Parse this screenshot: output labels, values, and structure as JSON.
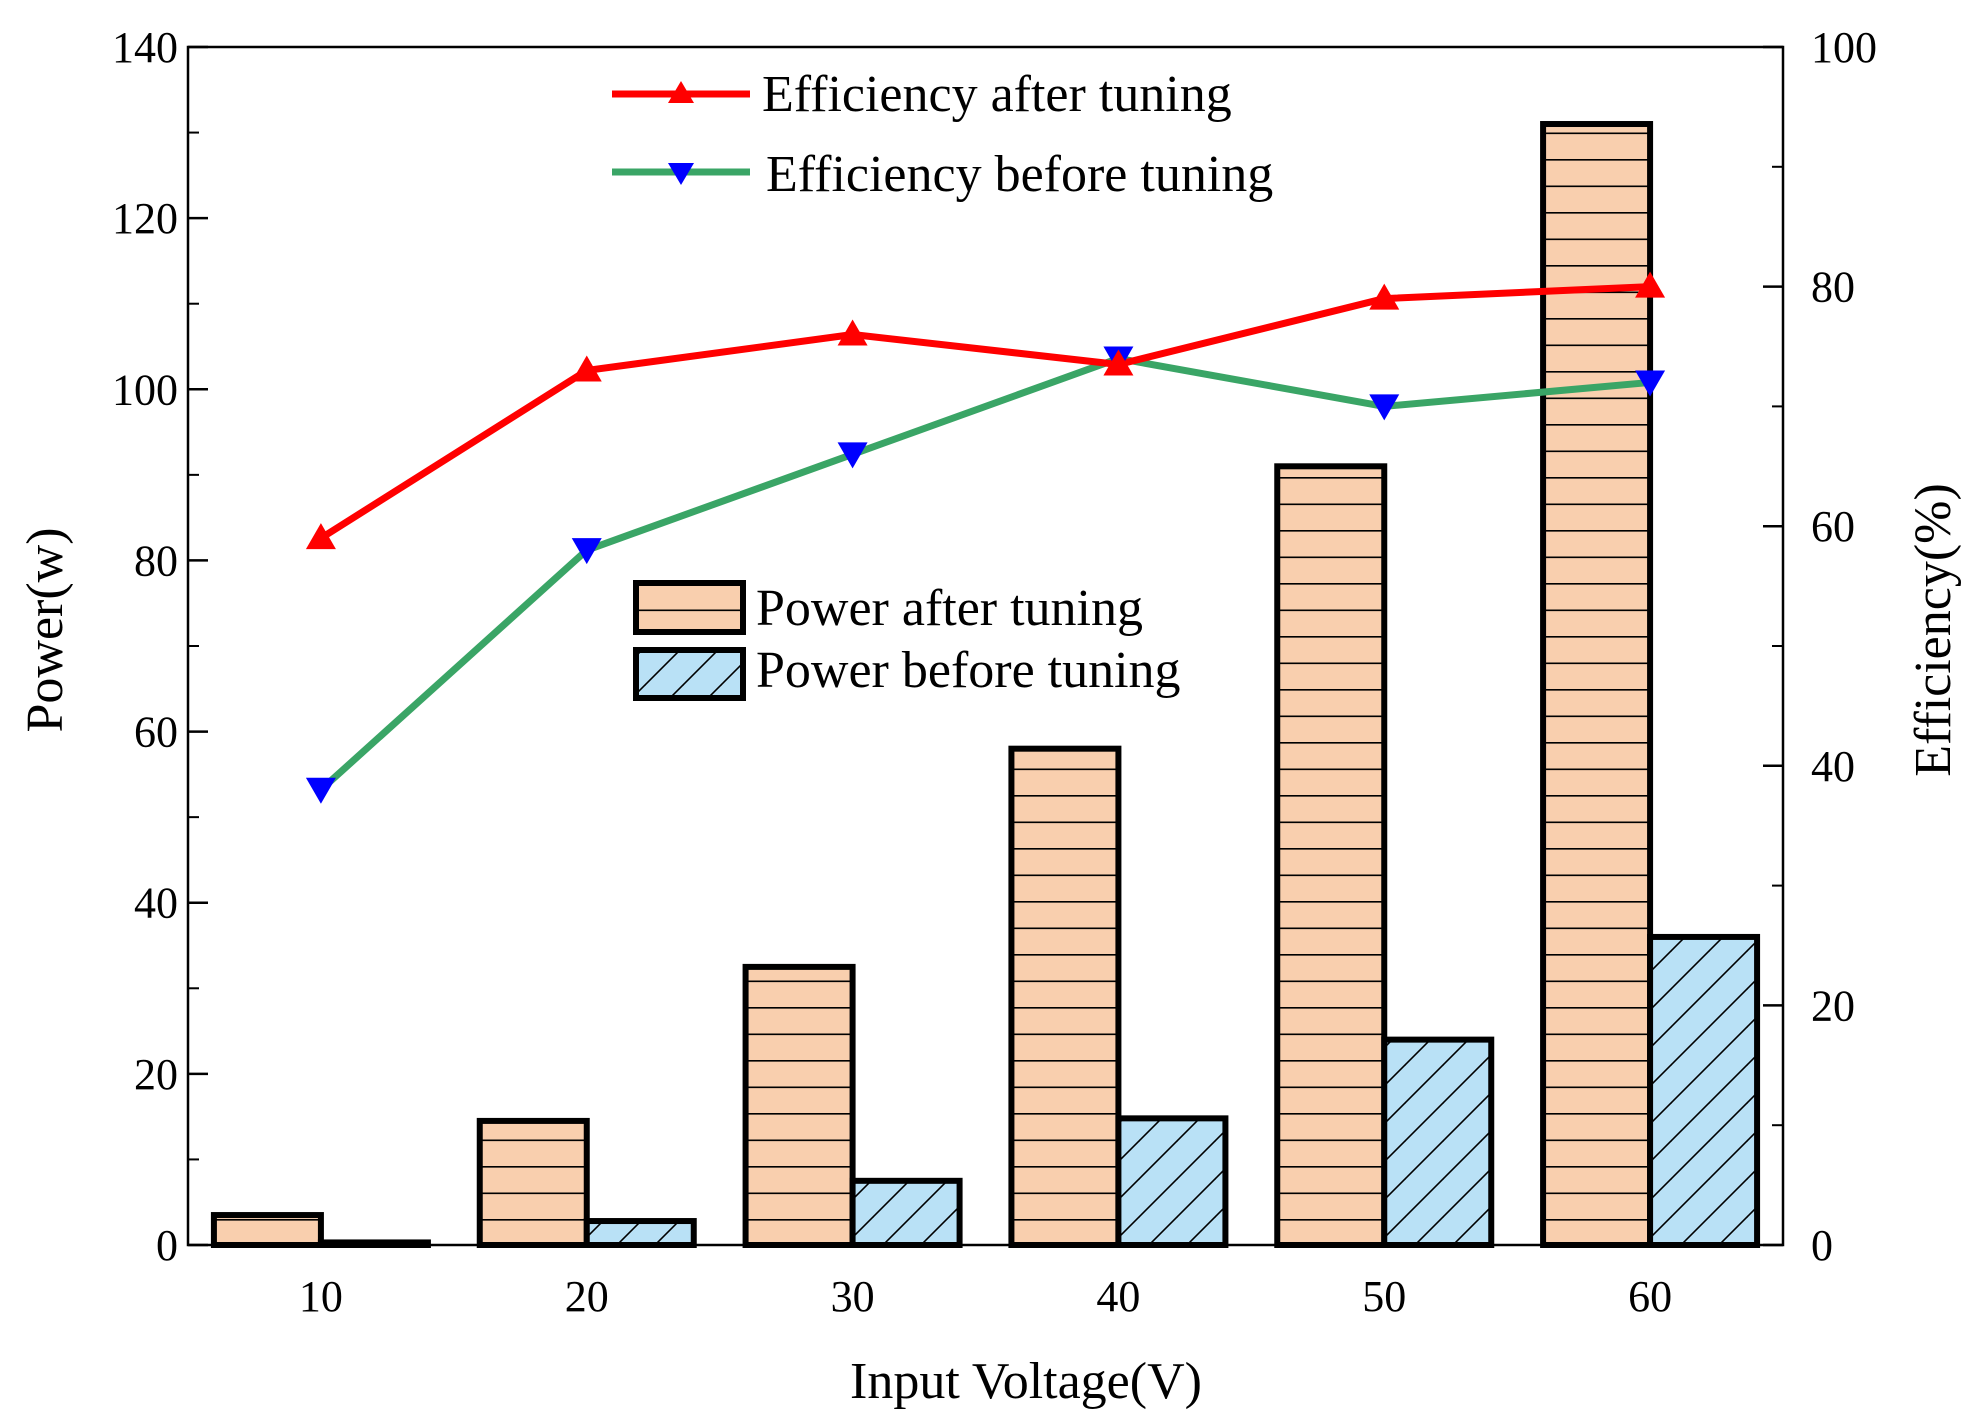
{
  "chart_data": {
    "type": "bar",
    "categories": [
      "10",
      "20",
      "30",
      "40",
      "50",
      "60"
    ],
    "xlabel": "Input Voltage(V)",
    "ylabel": "Power(w)",
    "y2label": "Efficiency(%)",
    "ylim": [
      0,
      140
    ],
    "y2lim": [
      0,
      100
    ],
    "yticks": [
      0,
      20,
      40,
      60,
      80,
      100,
      120,
      140
    ],
    "y2ticks": [
      0,
      20,
      40,
      60,
      80,
      100
    ],
    "series": [
      {
        "name": "Power after tuning",
        "kind": "bar",
        "axis": "left",
        "values": [
          3.5,
          14.5,
          32.5,
          58,
          91,
          131
        ]
      },
      {
        "name": "Power before tuning",
        "kind": "bar",
        "axis": "left",
        "values": [
          0.3,
          2.8,
          7.5,
          14.8,
          24,
          36
        ]
      },
      {
        "name": "Efficiency after tuning",
        "kind": "line",
        "axis": "right",
        "marker": "triangle-up",
        "values": [
          59,
          73,
          76,
          73.5,
          79,
          80
        ]
      },
      {
        "name": "Efficiency before tuning",
        "kind": "line",
        "axis": "right",
        "marker": "triangle-down",
        "values": [
          38,
          58,
          66,
          74,
          70,
          72
        ]
      }
    ],
    "colors": {
      "power_after_fill": "#f9cfae",
      "power_before_fill": "#b9e1f6",
      "eff_after_line": "#ff0000",
      "eff_after_marker": "#ff0000",
      "eff_before_line": "#3aa566",
      "eff_before_marker": "#0000ff"
    },
    "legend": {
      "lines_placement": "top-center",
      "bars_placement": "center"
    }
  }
}
